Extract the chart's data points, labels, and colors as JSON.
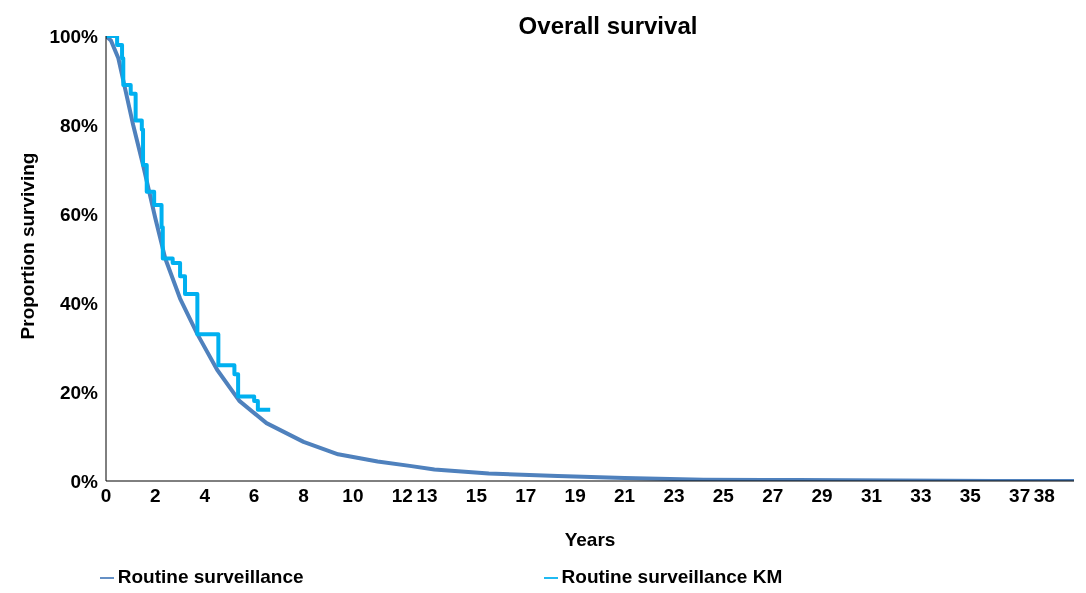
{
  "chart_data": {
    "type": "line",
    "title": "Overall survival",
    "xlabel": "Years",
    "ylabel": "Proportion surviving",
    "xlim": [
      0,
      39.2
    ],
    "xticks": [
      0,
      2,
      4,
      6,
      8,
      10,
      12,
      13,
      15,
      17,
      19,
      21,
      23,
      25,
      27,
      29,
      31,
      33,
      35,
      37,
      38
    ],
    "ylim": [
      0,
      100
    ],
    "yticks": [
      {
        "value": 0,
        "label": "0%"
      },
      {
        "value": 20,
        "label": "20%"
      },
      {
        "value": 40,
        "label": "40%"
      },
      {
        "value": 60,
        "label": "60%"
      },
      {
        "value": 80,
        "label": "80%"
      },
      {
        "value": 100,
        "label": "100%"
      }
    ],
    "grid": false,
    "legend": "bottom",
    "marker": "none",
    "line_style": "solid",
    "series": [
      {
        "name": "Routine surveillance",
        "color": "#4f81bd",
        "x": [
          0,
          0.2,
          0.5,
          0.8,
          1.1,
          1.5,
          2,
          2.4,
          3,
          3.7,
          4.5,
          5.4,
          6.5,
          8,
          9.4,
          11,
          12.3,
          13.3,
          15.5,
          18.3,
          21,
          24.2,
          28,
          32,
          36,
          39.2
        ],
        "values": [
          100,
          99,
          95,
          87.5,
          80,
          71,
          59,
          50,
          41,
          33,
          25,
          18,
          13,
          8.8,
          6,
          4.4,
          3.4,
          2.6,
          1.7,
          1.1,
          0.7,
          0.3,
          0.2,
          0.1,
          0,
          0
        ]
      },
      {
        "name": "Routine surveillance KM",
        "type": "step",
        "color": "#00b0f0",
        "x": [
          0,
          0.3,
          0.45,
          0.65,
          0.7,
          1,
          1.2,
          1.45,
          1.5,
          1.65,
          1.95,
          2.25,
          2.3,
          2.7,
          3,
          3.2,
          3.5,
          3.7,
          4.3,
          4.55,
          5,
          5.2,
          5.35,
          6,
          6.15,
          6.65
        ],
        "values": [
          100,
          100,
          98,
          95,
          89,
          87,
          81,
          79,
          71,
          65,
          62,
          57,
          50,
          49,
          46,
          42,
          42,
          33,
          33,
          26,
          26,
          24,
          19,
          18,
          16,
          16
        ]
      }
    ]
  }
}
